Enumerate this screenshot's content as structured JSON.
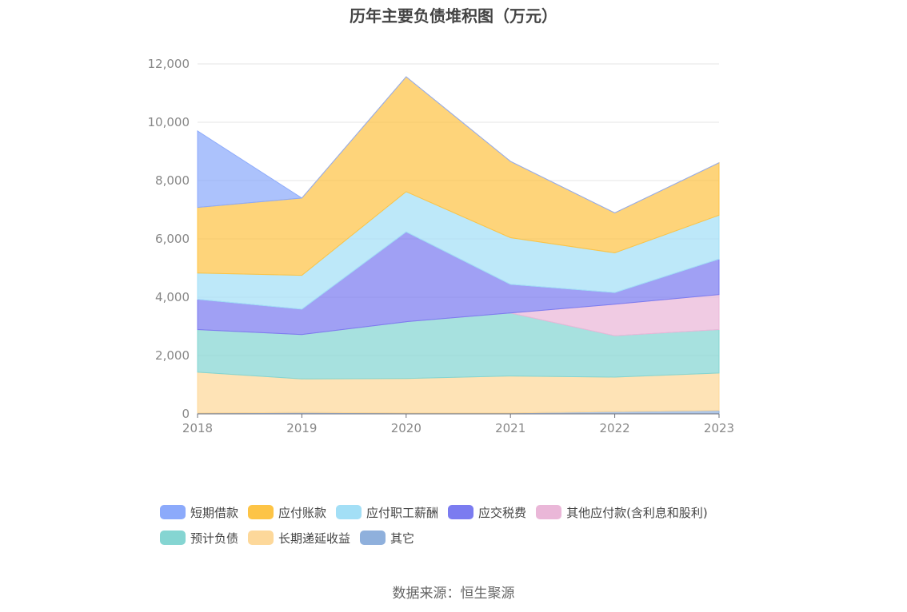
{
  "chart_data": {
    "type": "area",
    "stacked": true,
    "title": "历年主要负债堆积图（万元）",
    "source": "数据来源：恒生聚源",
    "x": [
      "2018",
      "2019",
      "2020",
      "2021",
      "2022",
      "2023"
    ],
    "ylim": [
      0,
      12000
    ],
    "yticks": [
      "0",
      "2,000",
      "4,000",
      "6,000",
      "8,000",
      "10,000",
      "12,000"
    ],
    "ytick_values": [
      0,
      2000,
      4000,
      6000,
      8000,
      10000,
      12000
    ],
    "grid": true,
    "legend_position": "bottom",
    "series": [
      {
        "name": "其它",
        "color": "#8fb0dc",
        "values": [
          30,
          50,
          30,
          30,
          80,
          120
        ]
      },
      {
        "name": "长期递延收益",
        "color": "#fdd89a",
        "values": [
          1400,
          1150,
          1180,
          1270,
          1180,
          1280
        ]
      },
      {
        "name": "预计负债",
        "color": "#85d5d2",
        "values": [
          1460,
          1520,
          1950,
          2160,
          1420,
          1490
        ]
      },
      {
        "name": "其他应付款(含利息和股利)",
        "color": "#eab7d8",
        "values": [
          0,
          0,
          0,
          0,
          1080,
          1200
        ]
      },
      {
        "name": "应交税费",
        "color": "#7b7cf0",
        "values": [
          1040,
          870,
          3080,
          980,
          400,
          1220
        ]
      },
      {
        "name": "应付职工薪酬",
        "color": "#a3dff6",
        "values": [
          900,
          1160,
          1380,
          1600,
          1360,
          1500
        ]
      },
      {
        "name": "应付账款",
        "color": "#fdc446",
        "values": [
          2250,
          2650,
          3940,
          2620,
          1370,
          1800
        ]
      },
      {
        "name": "短期借款",
        "color": "#8caafb",
        "values": [
          2620,
          0,
          0,
          0,
          0,
          0
        ]
      }
    ],
    "legend_order": [
      "短期借款",
      "应付账款",
      "应付职工薪酬",
      "应交税费",
      "其他应付款(含利息和股利)",
      "预计负债",
      "长期递延收益",
      "其它"
    ]
  }
}
